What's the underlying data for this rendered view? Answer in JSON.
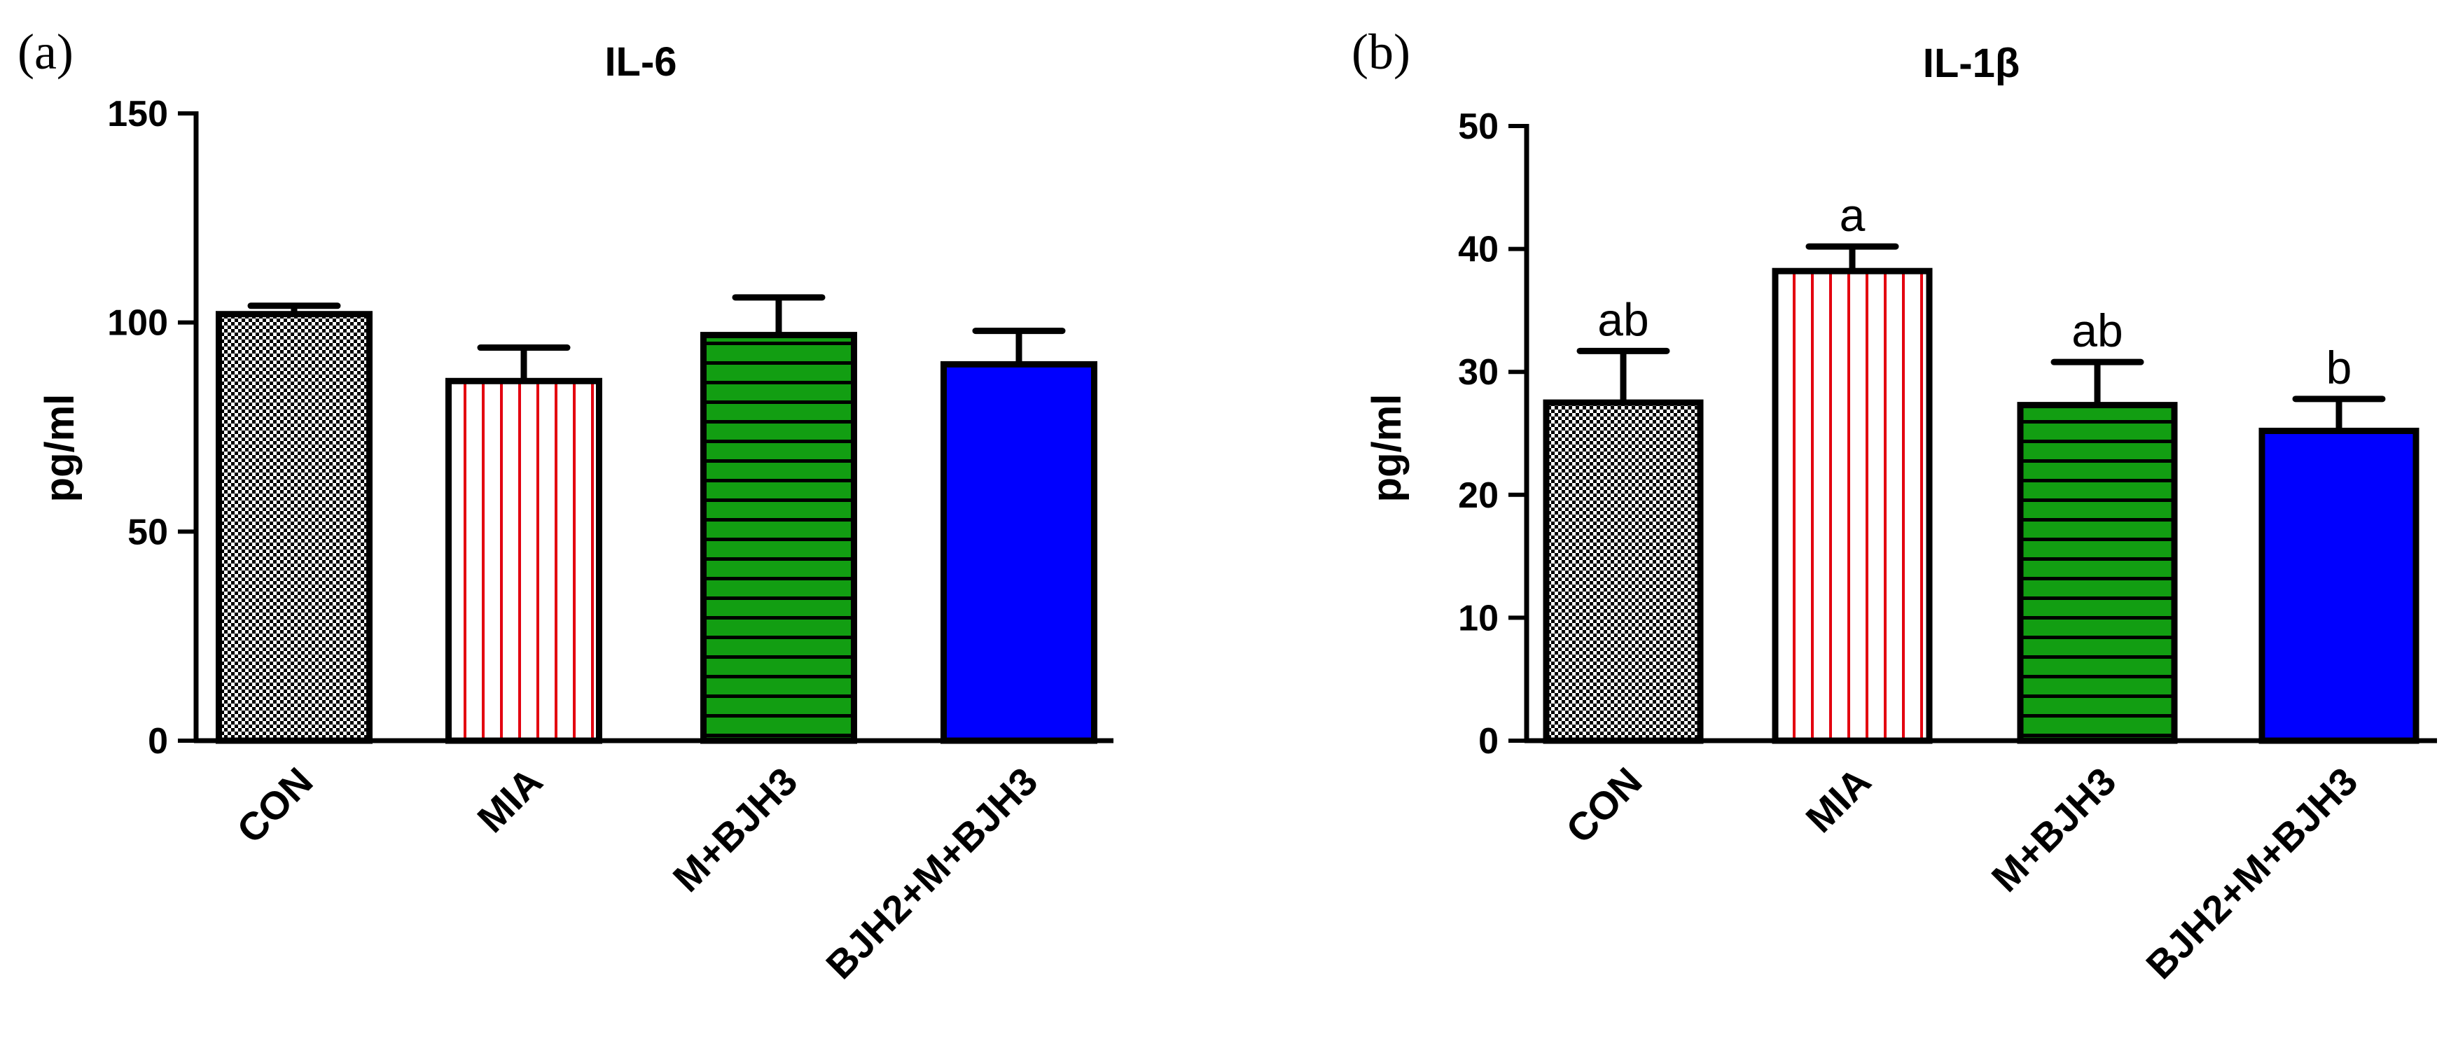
{
  "colors": {
    "con_pattern": "#000000",
    "mia_stripe": "#e3000f",
    "mbjh3_fill": "#129e12",
    "bjh2_fill": "#0000ff",
    "axis": "#000000"
  },
  "chart_data": [
    {
      "panel": "(a)",
      "type": "bar",
      "title": "IL-6",
      "ylabel": "pg/ml",
      "xlabel": "",
      "ylim": [
        0,
        150
      ],
      "yticks": [
        "0",
        "50",
        "100",
        "150"
      ],
      "categories": [
        "CON",
        "MIA",
        "M+BJH3",
        "BJH2+M+BJH3"
      ],
      "values": [
        102,
        86,
        97,
        90
      ],
      "errors": [
        2,
        8,
        9,
        8
      ],
      "significance": [
        "",
        "",
        "",
        ""
      ]
    },
    {
      "panel": "(b)",
      "type": "bar",
      "title": "IL-1β",
      "ylabel": "pg/ml",
      "xlabel": "",
      "ylim": [
        0,
        50
      ],
      "yticks": [
        "0",
        "10",
        "20",
        "30",
        "40",
        "50"
      ],
      "categories": [
        "CON",
        "MIA",
        "M+BJH3",
        "BJH2+M+BJH3"
      ],
      "values": [
        27.5,
        38.2,
        27.3,
        25.2
      ],
      "errors": [
        4.2,
        2.0,
        3.5,
        2.6
      ],
      "significance": [
        "ab",
        "a",
        "ab",
        "b"
      ]
    }
  ]
}
